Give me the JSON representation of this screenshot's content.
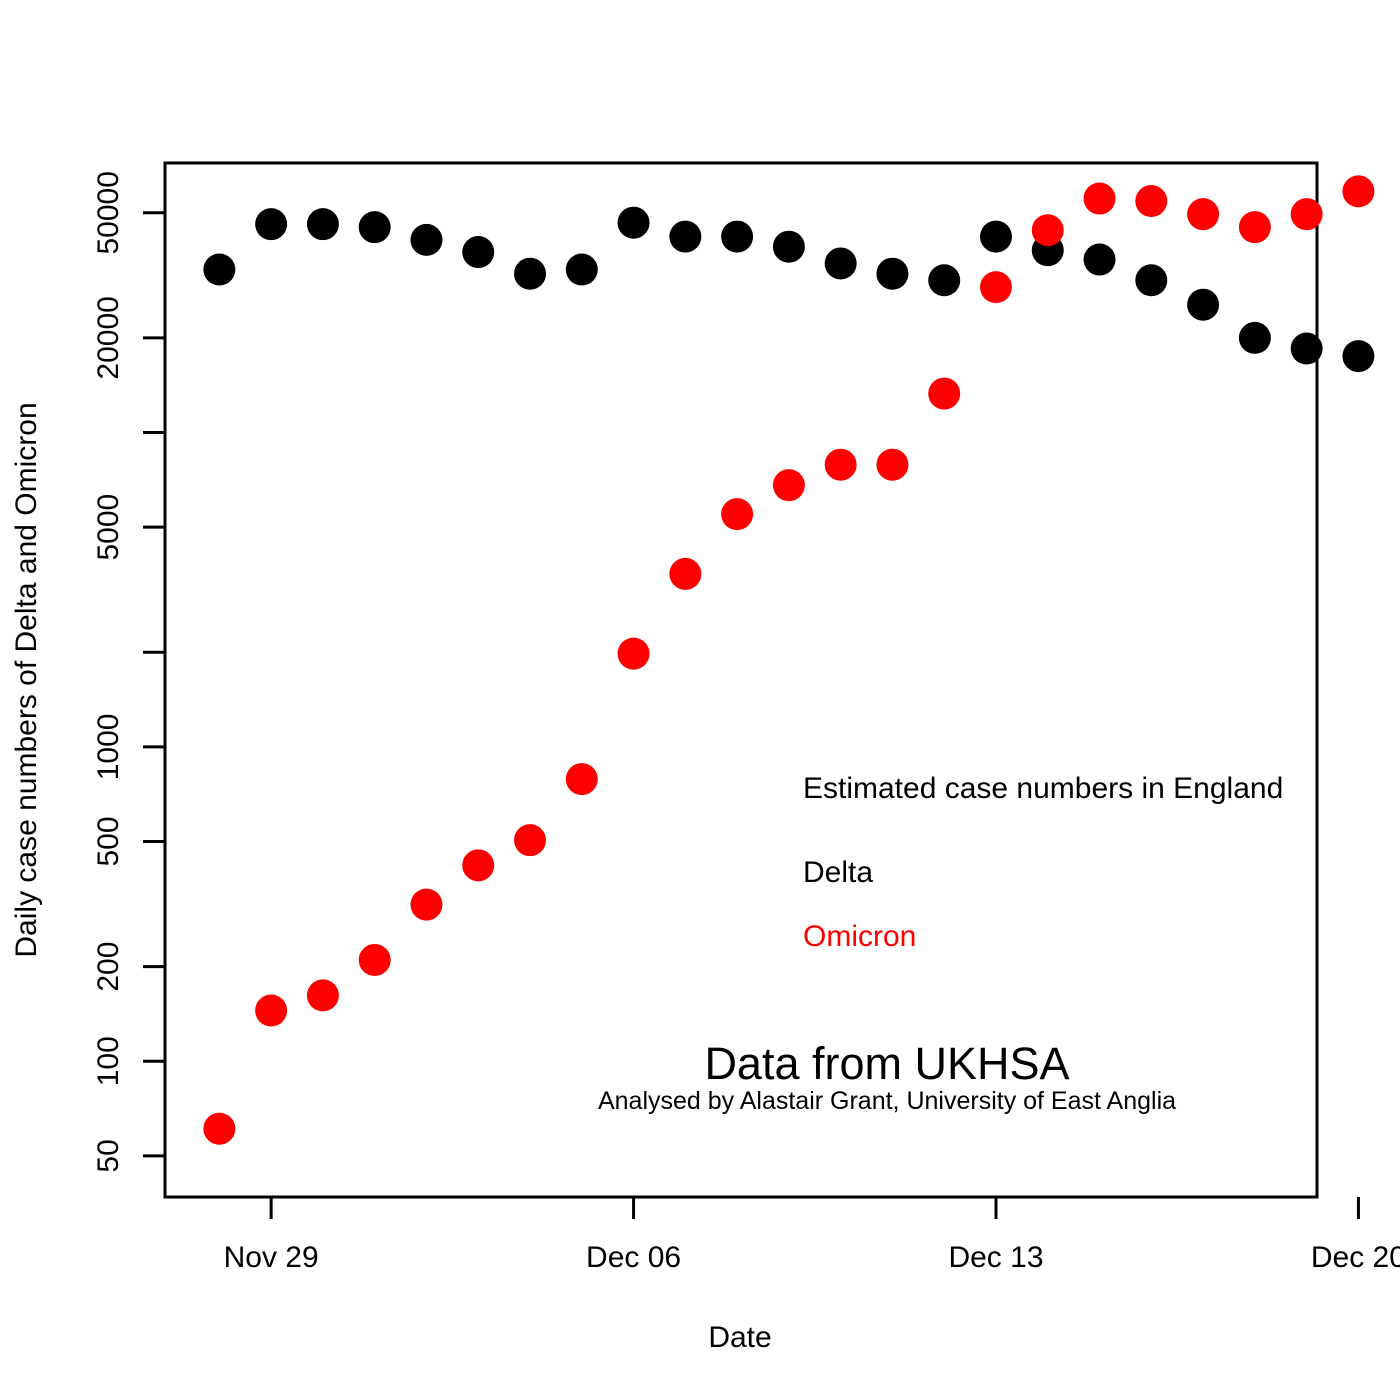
{
  "chart_data": {
    "type": "scatter",
    "title": "",
    "xlabel": "Date",
    "ylabel": "Daily case numbers of Delta and Omicron",
    "yscale": "log",
    "ylim": [
      37,
      72000
    ],
    "xlim": [
      -1.05,
      21.2
    ],
    "x_ticks": [
      {
        "day": 1,
        "label": "Nov 29"
      },
      {
        "day": 8,
        "label": "Dec 06"
      },
      {
        "day": 15,
        "label": "Dec 13"
      },
      {
        "day": 22,
        "label": "Dec 20"
      }
    ],
    "y_ticks": [
      {
        "value": 50,
        "label": "50"
      },
      {
        "value": 100,
        "label": "100"
      },
      {
        "value": 200,
        "label": "200"
      },
      {
        "value": 500,
        "label": "500"
      },
      {
        "value": 1000,
        "label": "1000"
      },
      {
        "value": 2000,
        "label": ""
      },
      {
        "value": 5000,
        "label": "5000"
      },
      {
        "value": 10000,
        "label": ""
      },
      {
        "value": 20000,
        "label": "20000"
      },
      {
        "value": 50000,
        "label": "50000"
      }
    ],
    "dates": [
      "Nov 28",
      "Nov 29",
      "Nov 30",
      "Dec 01",
      "Dec 02",
      "Dec 03",
      "Dec 04",
      "Dec 05",
      "Dec 06",
      "Dec 07",
      "Dec 08",
      "Dec 09",
      "Dec 10",
      "Dec 11",
      "Dec 12",
      "Dec 13",
      "Dec 14",
      "Dec 15",
      "Dec 16",
      "Dec 17",
      "Dec 18",
      "Dec 19",
      "Dec 20"
    ],
    "series": [
      {
        "name": "Delta",
        "color": "#000000",
        "values": [
          33000,
          46000,
          46000,
          45000,
          41000,
          37500,
          32000,
          33000,
          46500,
          42000,
          42000,
          39000,
          34500,
          32000,
          30500,
          42000,
          38000,
          35500,
          30500,
          25500,
          20000,
          18500,
          17500
        ]
      },
      {
        "name": "Omicron",
        "color": "#ff0000",
        "values": [
          61,
          145,
          162,
          210,
          315,
          420,
          505,
          790,
          1980,
          3550,
          5500,
          6800,
          7900,
          7900,
          13300,
          29000,
          44000,
          55500,
          54500,
          49500,
          45000,
          49500,
          58500
        ]
      }
    ],
    "annotations": {
      "legend_title": "Estimated case numbers in England",
      "legend_delta": "Delta",
      "legend_omicron": "Omicron",
      "source": "Data from UKHSA",
      "credit": "Analysed by Alastair Grant, University of East Anglia"
    }
  }
}
